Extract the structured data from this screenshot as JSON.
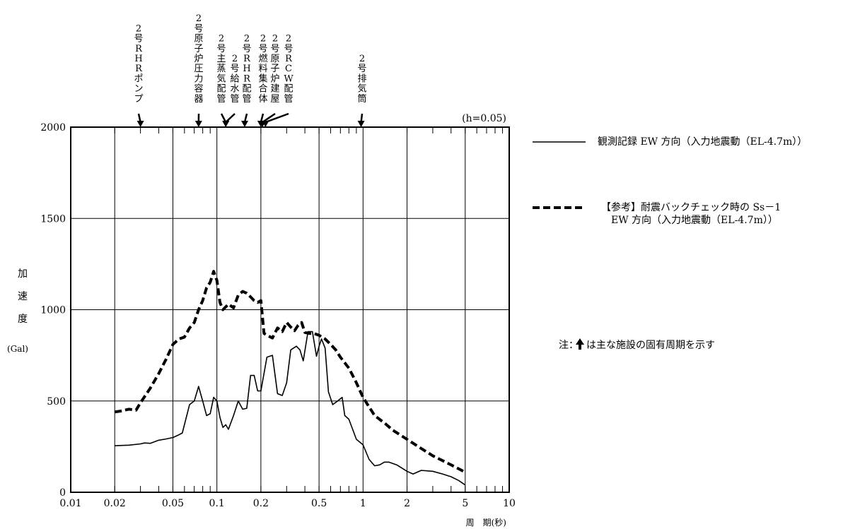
{
  "chart_data": {
    "type": "line",
    "xscale": "log",
    "xlim": [
      0.01,
      10
    ],
    "ylim": [
      0,
      2000
    ],
    "grid": true,
    "damping_label": "(h=0.05)",
    "xlabel": "周　期(秒)",
    "ylabel": "加速度",
    "ylabel_chars": [
      "加",
      "速",
      "度"
    ],
    "ylabel_unit": "(Gal)",
    "x_ticks": [
      {
        "value": 0.01,
        "label": "0.01"
      },
      {
        "value": 0.02,
        "label": "0.02"
      },
      {
        "value": 0.05,
        "label": "0.05"
      },
      {
        "value": 0.1,
        "label": "0.1"
      },
      {
        "value": 0.2,
        "label": "0.2"
      },
      {
        "value": 0.5,
        "label": "0.5"
      },
      {
        "value": 1,
        "label": "1"
      },
      {
        "value": 2,
        "label": "2"
      },
      {
        "value": 5,
        "label": "5"
      },
      {
        "value": 10,
        "label": "10"
      }
    ],
    "y_ticks": [
      {
        "value": 0,
        "label": "0"
      },
      {
        "value": 500,
        "label": "500"
      },
      {
        "value": 1000,
        "label": "1000"
      },
      {
        "value": 1500,
        "label": "1500"
      },
      {
        "value": 2000,
        "label": "2000"
      }
    ],
    "series": [
      {
        "name": "観測記録 EW 方向（入力地震動（EL-4.7m））",
        "style": "solid",
        "color": "#000000",
        "x": [
          0.02,
          0.025,
          0.03,
          0.032,
          0.035,
          0.04,
          0.045,
          0.05,
          0.055,
          0.058,
          0.065,
          0.07,
          0.075,
          0.08,
          0.085,
          0.09,
          0.095,
          0.1,
          0.105,
          0.11,
          0.115,
          0.12,
          0.13,
          0.14,
          0.15,
          0.16,
          0.17,
          0.18,
          0.19,
          0.2,
          0.22,
          0.24,
          0.26,
          0.28,
          0.3,
          0.32,
          0.35,
          0.37,
          0.39,
          0.42,
          0.45,
          0.48,
          0.5,
          0.52,
          0.55,
          0.58,
          0.62,
          0.67,
          0.72,
          0.75,
          0.8,
          0.9,
          1.0,
          1.1,
          1.2,
          1.3,
          1.4,
          1.5,
          1.7,
          2.0,
          2.2,
          2.5,
          3.0,
          3.5,
          4.0,
          4.5,
          5.0
        ],
        "values": [
          255,
          258,
          265,
          270,
          268,
          285,
          292,
          300,
          315,
          325,
          480,
          500,
          580,
          500,
          420,
          430,
          520,
          500,
          410,
          355,
          370,
          345,
          420,
          500,
          455,
          460,
          640,
          640,
          555,
          555,
          740,
          750,
          540,
          530,
          600,
          780,
          800,
          780,
          720,
          880,
          880,
          745,
          800,
          840,
          790,
          550,
          480,
          500,
          520,
          420,
          400,
          290,
          260,
          180,
          145,
          150,
          165,
          165,
          150,
          115,
          100,
          120,
          115,
          100,
          85,
          65,
          40
        ]
      },
      {
        "name": "【参考】耐震バックチェック時の Ss－1 EW 方向（入力地震動（EL-4.7m））",
        "style": "dashed",
        "color": "#000000",
        "x": [
          0.02,
          0.022,
          0.025,
          0.028,
          0.03,
          0.035,
          0.04,
          0.045,
          0.05,
          0.055,
          0.06,
          0.065,
          0.07,
          0.075,
          0.08,
          0.085,
          0.09,
          0.095,
          0.1,
          0.105,
          0.11,
          0.12,
          0.13,
          0.14,
          0.15,
          0.16,
          0.17,
          0.18,
          0.19,
          0.2,
          0.21,
          0.22,
          0.24,
          0.26,
          0.28,
          0.3,
          0.32,
          0.34,
          0.36,
          0.38,
          0.4,
          0.43,
          0.46,
          0.5,
          0.55,
          0.6,
          0.65,
          0.7,
          0.8,
          0.9,
          1.0,
          1.2,
          1.4,
          1.6,
          2.0,
          2.5,
          3.0,
          4.0,
          5.0
        ],
        "values": [
          440,
          445,
          455,
          450,
          490,
          570,
          650,
          730,
          810,
          840,
          850,
          900,
          930,
          1000,
          1050,
          1120,
          1150,
          1210,
          1160,
          1040,
          1000,
          1030,
          1010,
          1080,
          1100,
          1090,
          1070,
          1050,
          1040,
          1050,
          870,
          860,
          845,
          900,
          880,
          930,
          905,
          885,
          915,
          930,
          875,
          870,
          870,
          860,
          840,
          810,
          780,
          740,
          680,
          600,
          520,
          420,
          380,
          340,
          290,
          240,
          200,
          150,
          110
        ]
      }
    ],
    "facility_markers": [
      {
        "label": "2号RHRポンプ",
        "chars": [
          "2",
          "号",
          "R",
          "H",
          "R",
          "ポ",
          "ン",
          "プ"
        ],
        "period": 0.03
      },
      {
        "label": "2号原子炉圧力容器",
        "chars": [
          "2",
          "号",
          "原",
          "子",
          "炉",
          "圧",
          "力",
          "容",
          "器"
        ],
        "period": 0.075
      },
      {
        "label": "2号主蒸気配管",
        "chars": [
          "2",
          "号",
          "主",
          "蒸",
          "気",
          "配",
          "管"
        ],
        "period": 0.115
      },
      {
        "label": "2号給水管",
        "chars": [
          "2",
          "号",
          "給",
          "水",
          "管"
        ],
        "period": 0.115
      },
      {
        "label": "2号RHR配管",
        "chars": [
          "2",
          "号",
          "R",
          "H",
          "R",
          "配",
          "管"
        ],
        "period": 0.155
      },
      {
        "label": "2号燃料集合体",
        "chars": [
          "2",
          "号",
          "燃",
          "料",
          "集",
          "合",
          "体"
        ],
        "period": 0.2
      },
      {
        "label": "2号原子炉建屋",
        "chars": [
          "2",
          "号",
          "原",
          "子",
          "炉",
          "建",
          "屋"
        ],
        "period": 0.205
      },
      {
        "label": "2号RCW配管",
        "chars": [
          "2",
          "号",
          "R",
          "C",
          "W",
          "配",
          "管"
        ],
        "period": 0.215
      },
      {
        "label": "2号排気筒",
        "chars": [
          "2",
          "号",
          "排",
          "気",
          "筒"
        ],
        "period": 0.97
      }
    ]
  },
  "legend": {
    "observed_label": "観測記録 EW 方向（入力地震動（EL-4.7m））",
    "reference_line1": "【参考】耐震バックチェック時の Ss－1",
    "reference_line2": "EW 方向（入力地震動（EL-4.7m））"
  },
  "note": {
    "prefix": "注：",
    "arrow_icon": "up-arrow-icon",
    "text": "は主な施設の固有周期を示す"
  }
}
